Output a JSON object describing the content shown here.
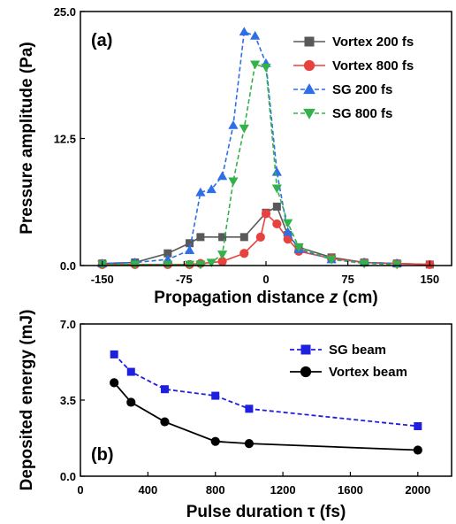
{
  "chart_data": [
    {
      "type": "line",
      "panel_label": "(a)",
      "xlabel": "Propagation distance z (cm)",
      "xlabel_parts": [
        "Propagation distance ",
        "z",
        " (cm)"
      ],
      "ylabel": "Pressure amplitude (Pa)",
      "xlim": [
        -170,
        170
      ],
      "ylim": [
        0,
        25
      ],
      "xticks": [
        -150,
        -75,
        0,
        75,
        150
      ],
      "yticks": [
        0,
        12.5,
        25
      ],
      "ytick_labels": [
        "0.0",
        "12.5",
        "25.0"
      ],
      "grid": false,
      "legend_position": "top-right",
      "series": [
        {
          "name": "Vortex 200 fs",
          "color": "#595959",
          "marker": "square",
          "dash": "solid",
          "x": [
            -150,
            -120,
            -90,
            -70,
            -60,
            -40,
            -20,
            0,
            10,
            20,
            30,
            60,
            90,
            120,
            150
          ],
          "y": [
            0.2,
            0.3,
            1.2,
            2.2,
            2.8,
            2.8,
            2.8,
            5.2,
            5.8,
            3.0,
            1.8,
            0.8,
            0.3,
            0.2,
            0.1
          ]
        },
        {
          "name": "Vortex 800 fs",
          "color": "#e8423f",
          "marker": "circle",
          "dash": "solid",
          "x": [
            -150,
            -120,
            -90,
            -70,
            -60,
            -40,
            -20,
            -5,
            0,
            10,
            20,
            30,
            60,
            90,
            120,
            150
          ],
          "y": [
            0.1,
            0.1,
            0.1,
            0.1,
            0.2,
            0.4,
            1.2,
            2.8,
            5.1,
            4.1,
            2.6,
            1.4,
            0.7,
            0.3,
            0.2,
            0.1
          ]
        },
        {
          "name": "SG 200 fs",
          "color": "#2f6fe6",
          "marker": "triangle-up",
          "dash": "dashed",
          "x": [
            -150,
            -120,
            -90,
            -70,
            -60,
            -50,
            -40,
            -30,
            -20,
            -10,
            0,
            10,
            20,
            30,
            60,
            90,
            120
          ],
          "y": [
            0.2,
            0.3,
            0.6,
            1.5,
            7.2,
            7.5,
            8.8,
            13.8,
            23.0,
            22.6,
            19.9,
            9.2,
            3.3,
            1.6,
            0.6,
            0.3,
            0.2
          ]
        },
        {
          "name": "SG 800 fs",
          "color": "#34b24a",
          "marker": "triangle-down",
          "dash": "dashed",
          "x": [
            -150,
            -120,
            -90,
            -70,
            -60,
            -50,
            -40,
            -30,
            -20,
            -10,
            0,
            10,
            20,
            30,
            60,
            90,
            120
          ],
          "y": [
            0.1,
            0.1,
            0.1,
            0.1,
            0.1,
            0.3,
            1.1,
            8.3,
            13.5,
            19.8,
            19.5,
            7.6,
            4.2,
            1.8,
            0.6,
            0.2,
            0.1
          ]
        }
      ]
    },
    {
      "type": "line",
      "panel_label": "(b)",
      "xlabel": "Pulse duration τ (fs)",
      "ylabel": "Deposited energy (mJ)",
      "xlim": [
        0,
        2200
      ],
      "ylim": [
        0,
        7
      ],
      "xticks": [
        0,
        400,
        800,
        1200,
        1600,
        2000
      ],
      "yticks": [
        0,
        3.5,
        7
      ],
      "ytick_labels": [
        "0.0",
        "3.5",
        "7.0"
      ],
      "grid": false,
      "legend_position": "top-right",
      "series": [
        {
          "name": "SG beam",
          "color": "#1f1fe0",
          "marker": "square",
          "dash": "dashed",
          "x": [
            200,
            300,
            500,
            800,
            1000,
            2000
          ],
          "y": [
            5.6,
            4.8,
            4.0,
            3.7,
            3.1,
            2.3
          ]
        },
        {
          "name": "Vortex beam",
          "color": "#000000",
          "marker": "circle",
          "dash": "solid",
          "x": [
            200,
            300,
            500,
            800,
            1000,
            2000
          ],
          "y": [
            4.3,
            3.4,
            2.5,
            1.6,
            1.5,
            1.2
          ]
        }
      ]
    }
  ]
}
